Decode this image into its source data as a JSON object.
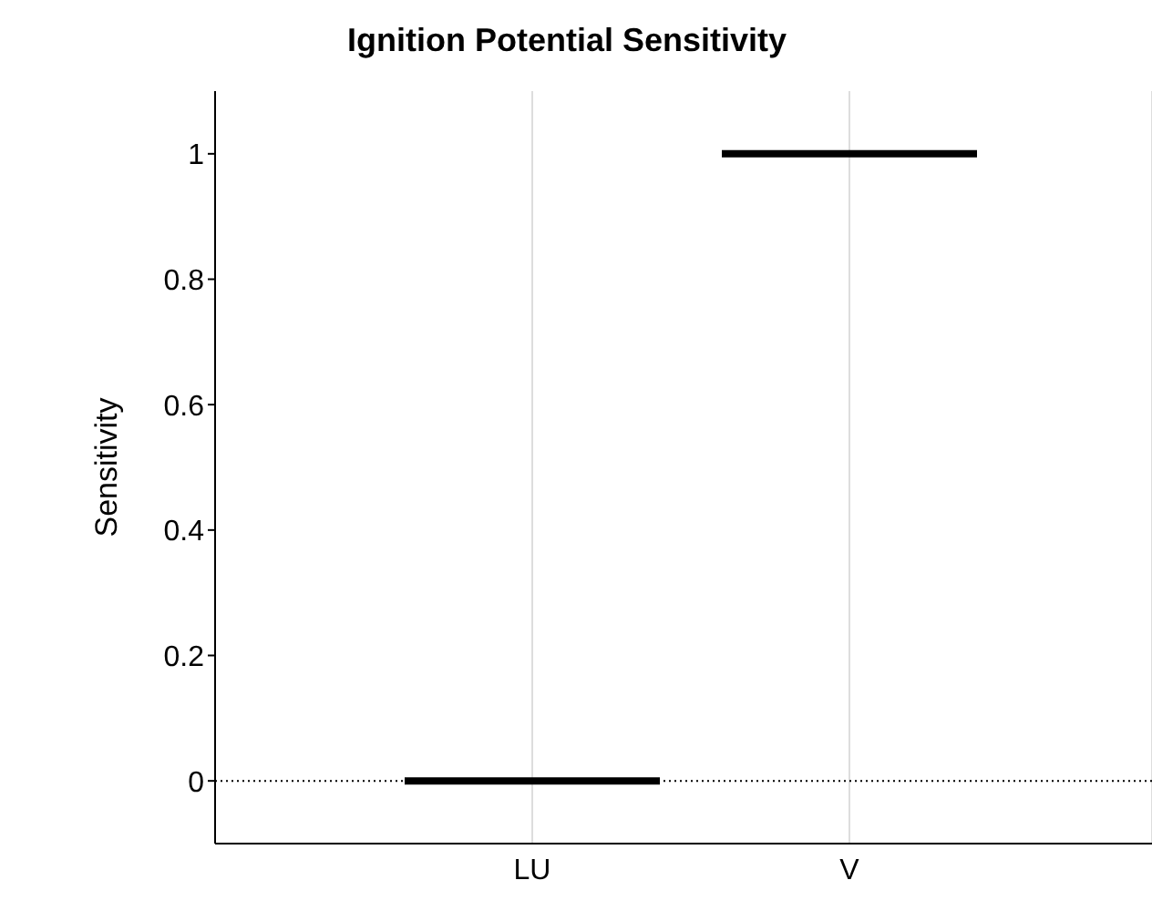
{
  "chart_data": {
    "type": "box",
    "title": "Ignition Potential Sensitivity",
    "ylabel": "Sensitivity",
    "categories": [
      "LU",
      "V"
    ],
    "boxes": [
      {
        "low": 0,
        "q1": 0,
        "median": 0,
        "q3": 0,
        "high": 0
      },
      {
        "low": 1,
        "q1": 1,
        "median": 1,
        "q3": 1,
        "high": 1
      }
    ],
    "color": "#000000",
    "ylim": [
      -0.1,
      1.1
    ],
    "yticks": [
      0,
      0.2,
      0.4,
      0.6,
      0.8,
      1
    ],
    "grid": "x",
    "ref_lines": [
      {
        "axis": "y",
        "value": 0,
        "color": "#000000",
        "line_style": "dotted"
      }
    ]
  }
}
